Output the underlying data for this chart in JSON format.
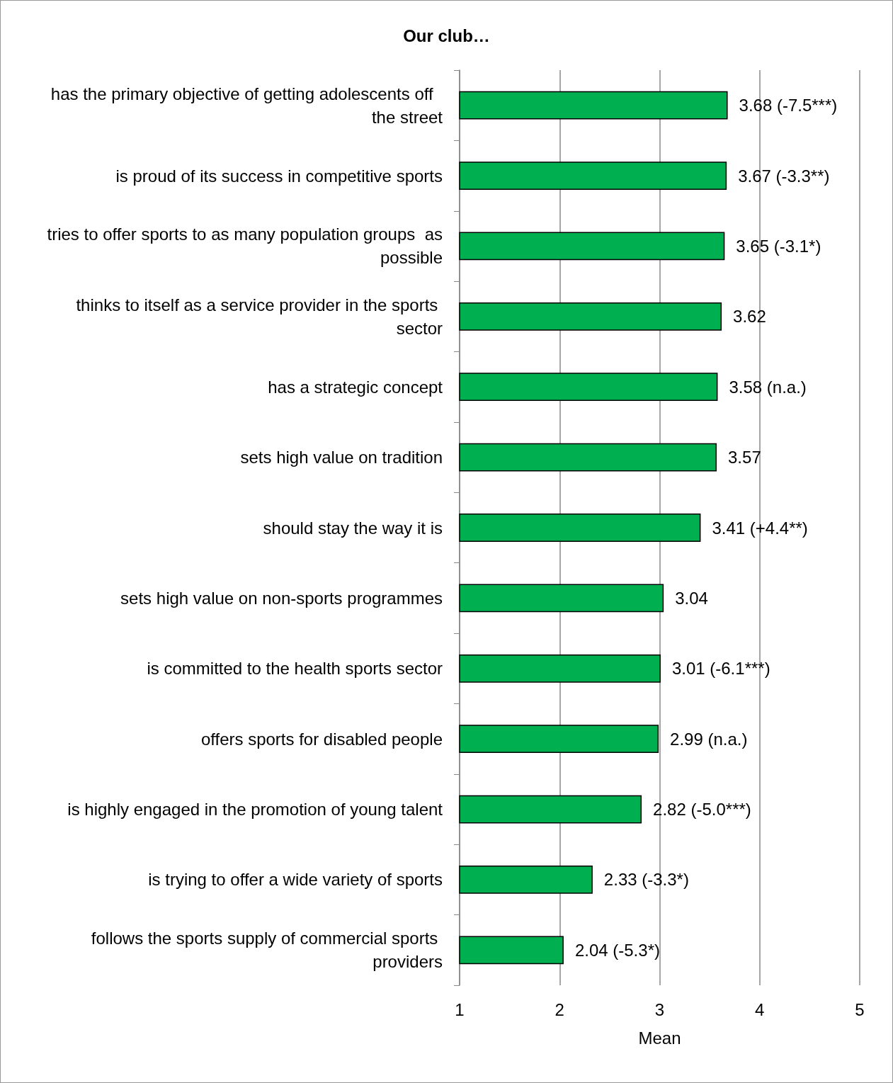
{
  "chart_data": {
    "type": "bar",
    "orientation": "horizontal",
    "title": "Our club…",
    "xlabel": "Mean",
    "categories": [
      "has the primary objective of getting adolescents off  the street",
      "is proud of its success in competitive sports",
      "tries to offer sports to as many population groups  as possible",
      "thinks to itself as a service provider in the sports sector",
      "has a strategic concept",
      "sets high value on tradition",
      "should stay the way it is",
      "sets high value on non-sports programmes",
      "is committed to the health sports sector",
      "offers sports for disabled people",
      "is highly engaged in the promotion of young talent",
      "is trying to offer a wide variety of sports",
      "follows the sports supply of commercial sports providers"
    ],
    "values": [
      3.68,
      3.67,
      3.65,
      3.62,
      3.58,
      3.57,
      3.41,
      3.04,
      3.01,
      2.99,
      2.82,
      2.33,
      2.04
    ],
    "value_labels": [
      "3.68 (-7.5***)",
      "3.67 (-3.3**)",
      "3.65 (-3.1*)",
      "3.62",
      "3.58 (n.a.)",
      "3.57",
      "3.41 (+4.4**)",
      "3.04",
      "3.01 (-6.1***)",
      "2.99 (n.a.)",
      "2.82 (-5.0***)",
      "2.33 (-3.3*)",
      "2.04 (-5.3*)"
    ],
    "color": "#00b050",
    "xlim": [
      1,
      5
    ],
    "xticks": [
      1,
      2,
      3,
      4,
      5
    ],
    "grid": "x"
  }
}
